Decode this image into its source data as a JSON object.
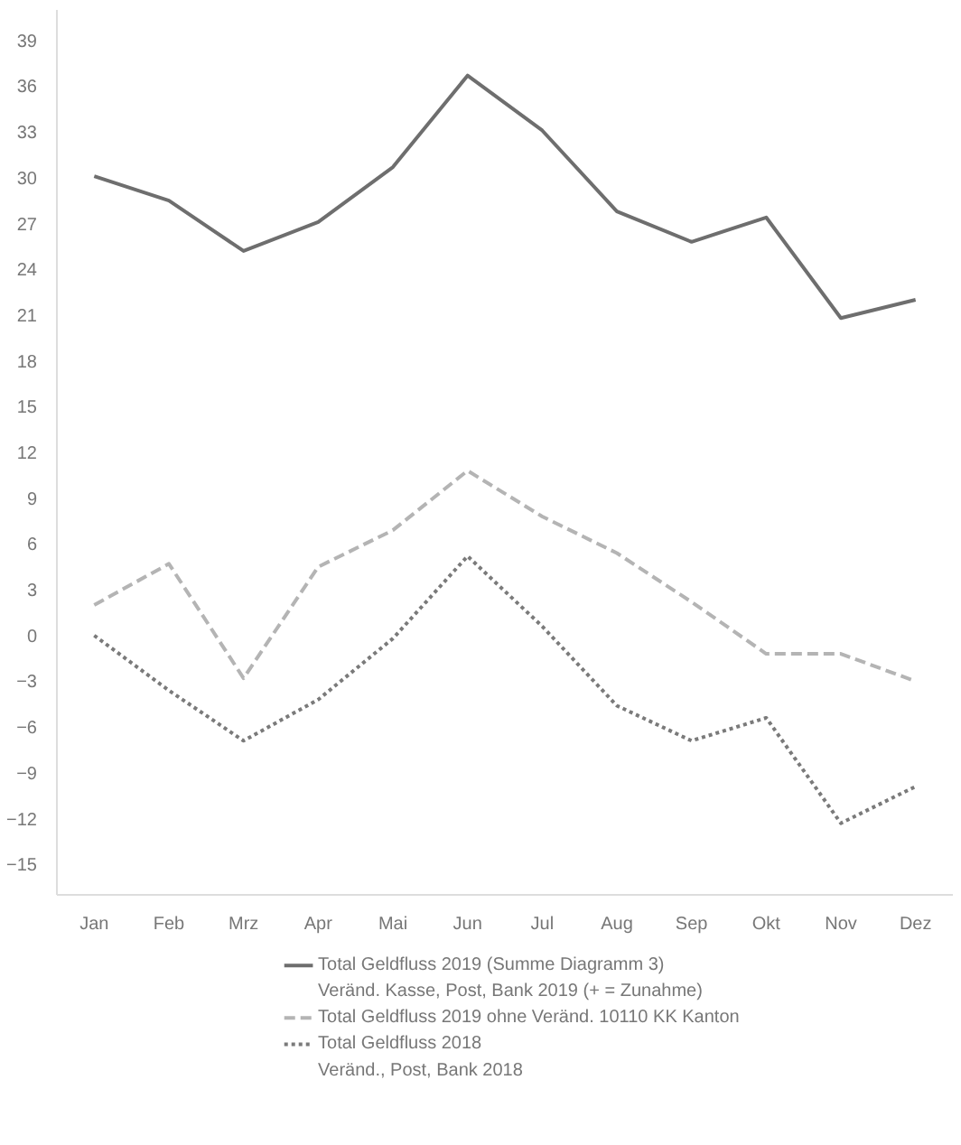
{
  "chart_data": {
    "type": "line",
    "categories": [
      "Jan",
      "Feb",
      "Mrz",
      "Apr",
      "Mai",
      "Jun",
      "Jul",
      "Aug",
      "Sep",
      "Okt",
      "Nov",
      "Dez"
    ],
    "ylim": [
      -17,
      41
    ],
    "yticks": [
      -15,
      -12,
      -9,
      -6,
      -3,
      0,
      3,
      6,
      9,
      12,
      15,
      18,
      21,
      24,
      27,
      30,
      33,
      36,
      39
    ],
    "grid": false,
    "legend": "bottom",
    "series": [
      {
        "name": "Total Geldfluss 2019 (Summe Diagramm 3)",
        "color": "#6e6e6e",
        "line_style": "solid",
        "values": [
          30.1,
          28.5,
          25.2,
          27.1,
          30.7,
          36.7,
          33.1,
          27.8,
          25.8,
          27.4,
          20.8,
          22.0
        ]
      },
      {
        "name": "Total Geldfluss 2019 ohne Veränd. 10110 KK Kanton",
        "color": "#b4b4b4",
        "line_style": "dashed",
        "values": [
          2.0,
          4.7,
          -2.8,
          4.5,
          6.9,
          10.8,
          7.8,
          5.4,
          2.2,
          -1.2,
          -1.2,
          -3.0
        ]
      },
      {
        "name": "Total Geldfluss 2018",
        "color": "#7a7a7a",
        "line_style": "dotted",
        "values": [
          0.0,
          -3.6,
          -6.9,
          -4.2,
          -0.2,
          5.2,
          0.6,
          -4.6,
          -6.9,
          -5.4,
          -12.3,
          -9.9
        ]
      }
    ],
    "annotations": [
      "Veränd. Kasse, Post, Bank 2019 (+ = Zunahme)",
      "Veränd., Post, Bank 2018"
    ]
  }
}
